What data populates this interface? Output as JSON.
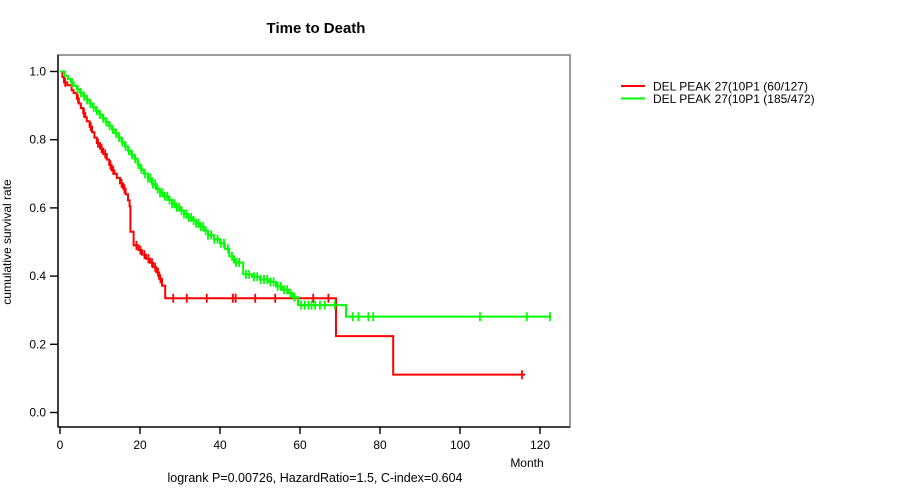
{
  "chart_data": {
    "type": "line",
    "subtype": "kaplan-meier-step",
    "title": "Time to Death",
    "xlabel": "Month",
    "ylabel": "cumulative survival rate",
    "caption": "logrank P=0.00726, HazardRatio=1.5, C-index=0.604",
    "xlim": [
      0,
      127
    ],
    "ylim": [
      0.0,
      1.0
    ],
    "grid": false,
    "legend_position": "top-right-outside",
    "xticks": {
      "values": [
        0,
        20,
        40,
        60,
        80,
        100,
        120
      ],
      "labels": [
        "0",
        "20",
        "40",
        "60",
        "80",
        "100",
        "120"
      ]
    },
    "yticks": {
      "values": [
        0.0,
        0.2,
        0.4,
        0.6,
        0.8,
        1.0
      ],
      "labels": [
        "0.0",
        "0.2",
        "0.4",
        "0.6",
        "0.8",
        "1.0"
      ]
    },
    "frame_color": "#808080",
    "axis_color": "#000000",
    "series": [
      {
        "label": "DEL PEAK 27(10P1 (60/127)",
        "color": "#ff0000",
        "start": [
          0,
          1.0
        ],
        "end_month": 116.3,
        "steps": [
          [
            0.6,
            0.984
          ],
          [
            1.0,
            0.968
          ],
          [
            1.8,
            0.96
          ],
          [
            2.9,
            0.945
          ],
          [
            3.4,
            0.937
          ],
          [
            4.2,
            0.92
          ],
          [
            4.7,
            0.906
          ],
          [
            5.2,
            0.893
          ],
          [
            5.8,
            0.878
          ],
          [
            6.3,
            0.866
          ],
          [
            6.7,
            0.854
          ],
          [
            7.4,
            0.838
          ],
          [
            8.0,
            0.822
          ],
          [
            8.6,
            0.806
          ],
          [
            9.2,
            0.79
          ],
          [
            10.0,
            0.774
          ],
          [
            10.8,
            0.758
          ],
          [
            11.7,
            0.742
          ],
          [
            12.3,
            0.726
          ],
          [
            12.9,
            0.71
          ],
          [
            13.6,
            0.7
          ],
          [
            14.2,
            0.688
          ],
          [
            15.0,
            0.672
          ],
          [
            15.8,
            0.656
          ],
          [
            16.4,
            0.64
          ],
          [
            17.0,
            0.622
          ],
          [
            17.4,
            0.605
          ],
          [
            17.6,
            0.53
          ],
          [
            18.4,
            0.49
          ],
          [
            19.6,
            0.476
          ],
          [
            20.5,
            0.463
          ],
          [
            21.5,
            0.451
          ],
          [
            22.5,
            0.439
          ],
          [
            23.3,
            0.426
          ],
          [
            24.1,
            0.411
          ],
          [
            24.8,
            0.392
          ],
          [
            25.5,
            0.372
          ],
          [
            26.3,
            0.335
          ],
          [
            69.0,
            0.224
          ],
          [
            83.3,
            0.111
          ]
        ],
        "censor_months": [
          1.3,
          4.5,
          6.0,
          7.7,
          9.5,
          10.4,
          11.3,
          12.6,
          13.3,
          15.4,
          16.1,
          19.1,
          20.1,
          21.1,
          22.1,
          23.0,
          23.8,
          24.5,
          25.1,
          28.3,
          31.7,
          36.7,
          43.2,
          43.9,
          48.8,
          53.8,
          63.3,
          67.1,
          115.5
        ]
      },
      {
        "label": "DEL PEAK 27(10P1 (185/472)",
        "color": "#00ff00",
        "start": [
          0,
          1.0
        ],
        "end_month": 122.5,
        "steps": [
          [
            1.2,
            0.987
          ],
          [
            2.0,
            0.978
          ],
          [
            2.7,
            0.968
          ],
          [
            3.4,
            0.958
          ],
          [
            4.2,
            0.948
          ],
          [
            5.0,
            0.938
          ],
          [
            5.8,
            0.928
          ],
          [
            6.6,
            0.917
          ],
          [
            7.4,
            0.906
          ],
          [
            8.2,
            0.895
          ],
          [
            9.0,
            0.885
          ],
          [
            9.8,
            0.874
          ],
          [
            10.6,
            0.863
          ],
          [
            11.4,
            0.852
          ],
          [
            12.2,
            0.841
          ],
          [
            13.0,
            0.83
          ],
          [
            13.8,
            0.819
          ],
          [
            14.6,
            0.806
          ],
          [
            15.4,
            0.793
          ],
          [
            16.2,
            0.78
          ],
          [
            17.0,
            0.768
          ],
          [
            17.8,
            0.756
          ],
          [
            18.6,
            0.744
          ],
          [
            19.4,
            0.727
          ],
          [
            20.2,
            0.712
          ],
          [
            21.0,
            0.7
          ],
          [
            22.0,
            0.687
          ],
          [
            23.0,
            0.67
          ],
          [
            24.0,
            0.655
          ],
          [
            25.0,
            0.644
          ],
          [
            26.0,
            0.634
          ],
          [
            27.0,
            0.623
          ],
          [
            28.0,
            0.612
          ],
          [
            29.0,
            0.602
          ],
          [
            30.0,
            0.592
          ],
          [
            31.0,
            0.582
          ],
          [
            32.0,
            0.572
          ],
          [
            33.0,
            0.563
          ],
          [
            34.0,
            0.555
          ],
          [
            35.0,
            0.545
          ],
          [
            36.0,
            0.533
          ],
          [
            37.0,
            0.52
          ],
          [
            38.5,
            0.508
          ],
          [
            40.0,
            0.496
          ],
          [
            41.2,
            0.48
          ],
          [
            42.3,
            0.458
          ],
          [
            43.5,
            0.44
          ],
          [
            45.8,
            0.405
          ],
          [
            48.0,
            0.398
          ],
          [
            50.0,
            0.39
          ],
          [
            52.0,
            0.383
          ],
          [
            54.0,
            0.37
          ],
          [
            55.5,
            0.36
          ],
          [
            57.0,
            0.35
          ],
          [
            58.2,
            0.338
          ],
          [
            59.5,
            0.315
          ],
          [
            71.5,
            0.281
          ]
        ],
        "censor_months": [
          3.0,
          4.4,
          5.2,
          6.0,
          6.8,
          7.6,
          8.4,
          9.2,
          10.0,
          10.8,
          11.6,
          12.4,
          13.2,
          14.0,
          14.8,
          15.6,
          16.4,
          17.2,
          18.0,
          18.8,
          19.6,
          20.4,
          21.2,
          22.0,
          22.6,
          23.2,
          23.8,
          24.4,
          25.0,
          25.6,
          26.2,
          26.8,
          27.4,
          28.0,
          28.6,
          29.2,
          29.8,
          30.4,
          31.0,
          31.6,
          32.2,
          32.8,
          33.4,
          34.0,
          34.6,
          35.2,
          35.8,
          36.4,
          37.0,
          37.8,
          38.6,
          39.4,
          40.2,
          41.0,
          42.0,
          43.0,
          44.0,
          44.8,
          46.5,
          47.3,
          48.5,
          49.3,
          50.2,
          51.0,
          51.8,
          52.6,
          53.4,
          54.4,
          55.2,
          56.0,
          56.8,
          57.6,
          58.6,
          60.3,
          61.2,
          62.1,
          62.9,
          63.8,
          65.0,
          66.2,
          68.7,
          73.2,
          74.6,
          77.1,
          78.3,
          105.0,
          116.7,
          122.5
        ]
      }
    ]
  }
}
